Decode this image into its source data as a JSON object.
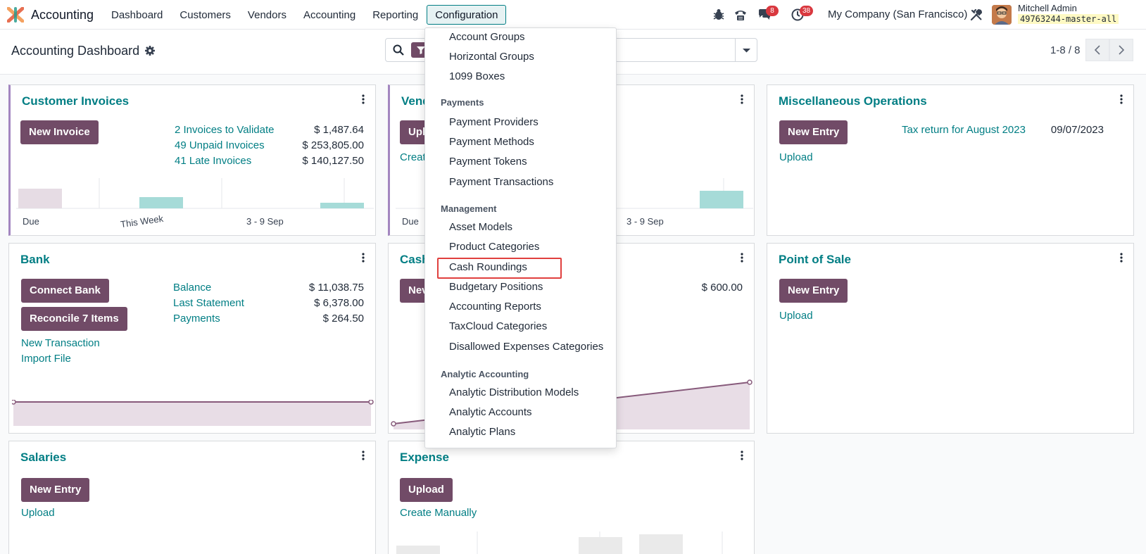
{
  "app": {
    "name": "Accounting"
  },
  "nav": {
    "items": [
      "Dashboard",
      "Customers",
      "Vendors",
      "Accounting",
      "Reporting",
      "Configuration"
    ]
  },
  "systray": {
    "messages_badge": "8",
    "activity_badge": "38",
    "company": "My Company (San Francisco)",
    "user_name": "Mitchell Admin",
    "db_name": "49763244-master-all"
  },
  "control_panel": {
    "title": "Accounting Dashboard",
    "pager": "1-8 / 8"
  },
  "dropdown": {
    "items_top": [
      "Account Groups",
      "Horizontal Groups",
      "1099 Boxes"
    ],
    "payments_header": "Payments",
    "payments": [
      "Payment Providers",
      "Payment Methods",
      "Payment Tokens",
      "Payment Transactions"
    ],
    "management_header": "Management",
    "management": [
      "Asset Models",
      "Product Categories",
      "Cash Roundings",
      "Budgetary Positions",
      "Accounting Reports",
      "TaxCloud Categories",
      "Disallowed Expenses Categories"
    ],
    "analytic_header": "Analytic Accounting",
    "analytic": [
      "Analytic Distribution Models",
      "Analytic Accounts",
      "Analytic Plans"
    ]
  },
  "cards": {
    "customer_invoices": {
      "title": "Customer Invoices",
      "button": "New Invoice",
      "rows": [
        {
          "label": "2 Invoices to Validate",
          "amount": "$ 1,487.64"
        },
        {
          "label": "49 Unpaid Invoices",
          "amount": "$ 253,805.00"
        },
        {
          "label": "41 Late Invoices",
          "amount": "$ 140,127.50"
        }
      ],
      "chart_labels": [
        "Due",
        "This Week",
        "3 - 9 Sep"
      ]
    },
    "vendor_bills": {
      "title_visible": "Vend",
      "button_visible": "Upl",
      "link_visible": "Creat",
      "chart_labels": [
        "Due",
        "3 - 9 Sep"
      ]
    },
    "misc": {
      "title": "Miscellaneous Operations",
      "button": "New Entry",
      "link": "Upload",
      "entry_label": "Tax return for August 2023",
      "entry_date": "09/07/2023"
    },
    "bank": {
      "title": "Bank",
      "button1": "Connect Bank",
      "button2": "Reconcile 7 Items",
      "link1": "New Transaction",
      "link2": "Import File",
      "rows": [
        {
          "label": "Balance",
          "amount": "$ 11,038.75"
        },
        {
          "label": "Last Statement",
          "amount": "$ 6,378.00"
        },
        {
          "label": "Payments",
          "amount": "$ 264.50"
        }
      ]
    },
    "cash": {
      "title_visible": "Cash",
      "button_visible": "Nev",
      "amount": "$ 600.00"
    },
    "pos": {
      "title": "Point of Sale",
      "button": "New Entry",
      "link": "Upload"
    },
    "salaries": {
      "title": "Salaries",
      "button": "New Entry",
      "link": "Upload"
    },
    "expense": {
      "title": "Expense",
      "button": "Upload",
      "link": "Create Manually"
    }
  },
  "colors": {
    "brand": "#714b67",
    "link": "#017e84",
    "highlight": "#e0403e"
  }
}
